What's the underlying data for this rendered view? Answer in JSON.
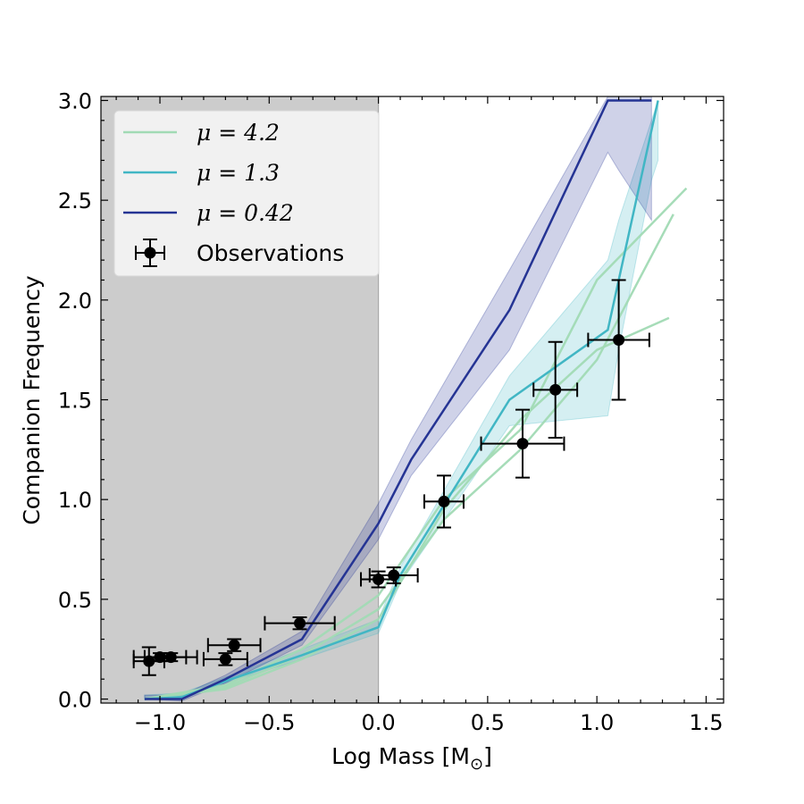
{
  "chart_data": {
    "type": "line",
    "xlabel": "Log Mass [M",
    "xlabel_sub": "⊙",
    "xlabel_close": "]",
    "ylabel": "Companion Frequency",
    "xlim": [
      -1.27,
      1.58
    ],
    "ylim": [
      -0.02,
      3.02
    ],
    "xticks": [
      -1.0,
      -0.5,
      0.0,
      0.5,
      1.0,
      1.5
    ],
    "xtick_labels": [
      "−1.0",
      "−0.5",
      "0.0",
      "0.5",
      "1.0",
      "1.5"
    ],
    "yticks": [
      0.0,
      0.5,
      1.0,
      1.5,
      2.0,
      2.5,
      3.0
    ],
    "ytick_labels": [
      "0.0",
      "0.5",
      "1.0",
      "1.5",
      "2.0",
      "2.5",
      "3.0"
    ],
    "shaded_region": {
      "x0": -1.27,
      "x1": 0.0,
      "color": "#cccccc"
    },
    "legend": {
      "placement": "top-left",
      "entries": [
        {
          "label": "μ = 4.2",
          "color": "#a1dab4"
        },
        {
          "label": "μ = 1.3",
          "color": "#41b6c4"
        },
        {
          "label": "μ = 0.42",
          "color": "#253494"
        },
        {
          "label": "Observations",
          "color": "#000000"
        }
      ]
    },
    "series": [
      {
        "name": "μ = 4.2",
        "color": "#a1dab4",
        "lines": [
          {
            "x": [
              -1.07,
              -0.7,
              -0.35,
              0.0,
              0.3,
              0.65,
              1.0,
              1.33
            ],
            "y": [
              0.0,
              0.05,
              0.2,
              0.4,
              0.95,
              1.4,
              1.75,
              1.91
            ]
          },
          {
            "x": [
              -1.07,
              -0.7,
              -0.35,
              0.0,
              0.3,
              0.65,
              1.0,
              1.35
            ],
            "y": [
              0.0,
              0.06,
              0.22,
              0.45,
              0.9,
              1.25,
              1.7,
              2.43
            ]
          },
          {
            "x": [
              -1.07,
              -0.7,
              -0.35,
              0.0,
              0.3,
              0.65,
              1.0,
              1.41
            ],
            "y": [
              0.0,
              0.07,
              0.25,
              0.52,
              1.0,
              1.35,
              2.1,
              2.56
            ]
          }
        ]
      },
      {
        "name": "μ = 1.3",
        "color": "#41b6c4",
        "band_x": [
          -1.07,
          -0.9,
          -0.7,
          -0.35,
          0.0,
          0.1,
          0.6,
          1.05,
          1.1,
          1.25,
          1.28
        ],
        "band_lo": [
          0.0,
          0.0,
          0.08,
          0.2,
          0.33,
          0.58,
          1.37,
          1.42,
          1.75,
          2.6,
          2.7
        ],
        "band_hi": [
          0.02,
          0.03,
          0.11,
          0.25,
          0.4,
          0.66,
          1.62,
          2.2,
          2.4,
          2.9,
          3.0
        ],
        "x": [
          -1.07,
          -0.9,
          -0.7,
          -0.35,
          0.0,
          0.1,
          0.6,
          1.05,
          1.1,
          1.28
        ],
        "y": [
          0.0,
          0.01,
          0.09,
          0.22,
          0.36,
          0.62,
          1.5,
          1.85,
          2.1,
          3.0
        ]
      },
      {
        "name": "μ = 0.42",
        "color": "#253494",
        "band_x": [
          -1.07,
          -0.9,
          -0.7,
          -0.35,
          0.0,
          0.15,
          0.6,
          1.05,
          1.1,
          1.25
        ],
        "band_lo": [
          0.0,
          -0.01,
          0.08,
          0.27,
          0.8,
          1.12,
          1.75,
          2.74,
          2.65,
          2.4
        ],
        "band_hi": [
          0.02,
          0.02,
          0.12,
          0.34,
          0.98,
          1.3,
          2.15,
          3.02,
          3.02,
          3.02
        ],
        "x": [
          -1.07,
          -0.9,
          -0.7,
          -0.35,
          0.0,
          0.15,
          0.6,
          1.05,
          1.25
        ],
        "y": [
          0.0,
          0.0,
          0.1,
          0.3,
          0.88,
          1.2,
          1.95,
          3.0,
          3.0
        ]
      }
    ],
    "observations": {
      "name": "Observations",
      "color": "#000000",
      "points": [
        {
          "x": -1.05,
          "y": 0.19,
          "xerr": 0.07,
          "yerr": 0.07
        },
        {
          "x": -1.0,
          "y": 0.21,
          "xerr": 0.12,
          "yerr": 0.02
        },
        {
          "x": -0.95,
          "y": 0.21,
          "xerr": 0.12,
          "yerr": 0.02
        },
        {
          "x": -0.7,
          "y": 0.2,
          "xerr": 0.1,
          "yerr": 0.03
        },
        {
          "x": -0.66,
          "y": 0.27,
          "xerr": 0.12,
          "yerr": 0.03
        },
        {
          "x": -0.36,
          "y": 0.38,
          "xerr": 0.16,
          "yerr": 0.03
        },
        {
          "x": 0.0,
          "y": 0.6,
          "xerr": 0.08,
          "yerr": 0.04
        },
        {
          "x": 0.07,
          "y": 0.62,
          "xerr": 0.11,
          "yerr": 0.04
        },
        {
          "x": 0.3,
          "y": 0.99,
          "xerr": 0.09,
          "yerr": 0.13
        },
        {
          "x": 0.66,
          "y": 1.28,
          "xerr": 0.19,
          "yerr": 0.17
        },
        {
          "x": 0.81,
          "y": 1.55,
          "xerr": 0.1,
          "yerr": 0.24
        },
        {
          "x": 1.1,
          "y": 1.8,
          "xerr": 0.14,
          "yerr": 0.3
        }
      ]
    }
  }
}
